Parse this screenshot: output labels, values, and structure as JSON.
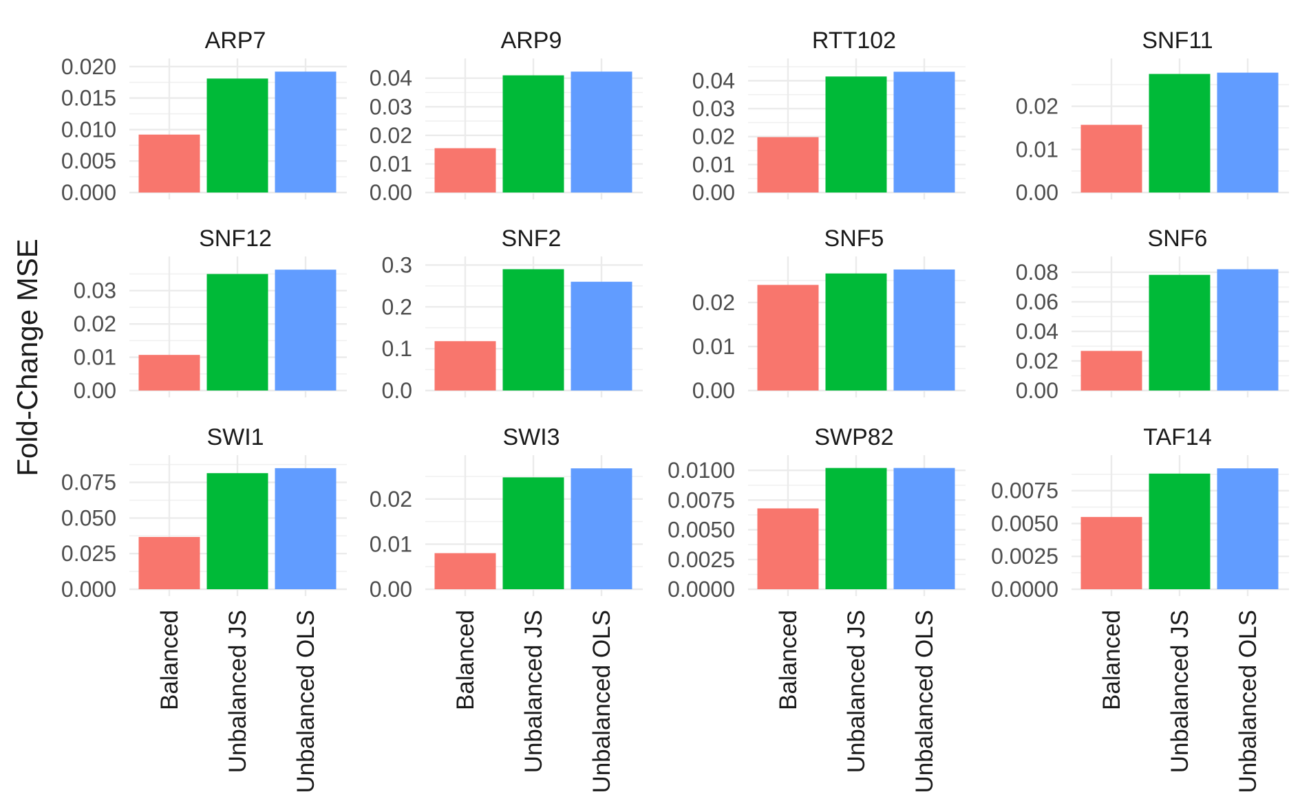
{
  "chart_data": {
    "type": "bar",
    "layout": "facet grid, 3 rows x 4 columns, free y scales",
    "ylabel": "Fold-Change MSE",
    "xlabel": "",
    "categories": [
      "Balanced",
      "Unbalanced JS",
      "Unbalanced OLS"
    ],
    "colors": {
      "Balanced": "#F8766D",
      "Unbalanced JS": "#00BA38",
      "Unbalanced OLS": "#619CFF"
    },
    "grid": true,
    "legend": "none",
    "panels": [
      {
        "title": "ARP7",
        "values": [
          0.0092,
          0.0181,
          0.0192
        ],
        "ylim": [
          0,
          0.0202
        ],
        "ticks": [
          0.0,
          0.005,
          0.01,
          0.015,
          0.02
        ],
        "tick_labels": [
          "0.000",
          "0.005",
          "0.010",
          "0.015",
          "0.020"
        ]
      },
      {
        "title": "ARP9",
        "values": [
          0.0155,
          0.041,
          0.0423
        ],
        "ylim": [
          0,
          0.0445
        ],
        "ticks": [
          0.0,
          0.01,
          0.02,
          0.03,
          0.04
        ],
        "tick_labels": [
          "0.00",
          "0.01",
          "0.02",
          "0.03",
          "0.04"
        ]
      },
      {
        "title": "RTT102",
        "values": [
          0.0198,
          0.0415,
          0.0432
        ],
        "ylim": [
          0,
          0.0455
        ],
        "ticks": [
          0.0,
          0.01,
          0.02,
          0.03,
          0.04
        ],
        "tick_labels": [
          "0.00",
          "0.01",
          "0.02",
          "0.03",
          "0.04"
        ]
      },
      {
        "title": "SNF11",
        "values": [
          0.0157,
          0.0275,
          0.0278
        ],
        "ylim": [
          0,
          0.0295
        ],
        "ticks": [
          0.0,
          0.01,
          0.02
        ],
        "tick_labels": [
          "0.00",
          "0.01",
          "0.02"
        ]
      },
      {
        "title": "SNF12",
        "values": [
          0.0107,
          0.035,
          0.0363
        ],
        "ylim": [
          0,
          0.0382
        ],
        "ticks": [
          0.0,
          0.01,
          0.02,
          0.03
        ],
        "tick_labels": [
          "0.00",
          "0.01",
          "0.02",
          "0.03"
        ]
      },
      {
        "title": "SNF2",
        "values": [
          0.118,
          0.29,
          0.26
        ],
        "ylim": [
          0,
          0.304
        ],
        "ticks": [
          0.0,
          0.1,
          0.2,
          0.3
        ],
        "tick_labels": [
          "0.0",
          "0.1",
          "0.2",
          "0.3"
        ]
      },
      {
        "title": "SNF5",
        "values": [
          0.024,
          0.0266,
          0.0275
        ],
        "ylim": [
          0,
          0.0289
        ],
        "ticks": [
          0.0,
          0.01,
          0.02
        ],
        "tick_labels": [
          "0.00",
          "0.01",
          "0.02"
        ]
      },
      {
        "title": "SNF6",
        "values": [
          0.0268,
          0.0782,
          0.082
        ],
        "ylim": [
          0,
          0.086
        ],
        "ticks": [
          0.0,
          0.02,
          0.04,
          0.06,
          0.08
        ],
        "tick_labels": [
          "0.00",
          "0.02",
          "0.04",
          "0.06",
          "0.08"
        ]
      },
      {
        "title": "SWI1",
        "values": [
          0.0367,
          0.0815,
          0.085
        ],
        "ylim": [
          0,
          0.0893
        ],
        "ticks": [
          0.0,
          0.025,
          0.05,
          0.075
        ],
        "tick_labels": [
          "0.000",
          "0.025",
          "0.050",
          "0.075"
        ]
      },
      {
        "title": "SWI3",
        "values": [
          0.008,
          0.0248,
          0.0268
        ],
        "ylim": [
          0,
          0.0282
        ],
        "ticks": [
          0.0,
          0.01,
          0.02
        ],
        "tick_labels": [
          "0.00",
          "0.01",
          "0.02"
        ]
      },
      {
        "title": "SWP82",
        "values": [
          0.0068,
          0.0102,
          0.0102
        ],
        "ylim": [
          0,
          0.0107
        ],
        "ticks": [
          0.0,
          0.0025,
          0.005,
          0.0075,
          0.01
        ],
        "tick_labels": [
          "0.0000",
          "0.0025",
          "0.0050",
          "0.0075",
          "0.0100"
        ]
      },
      {
        "title": "TAF14",
        "values": [
          0.0055,
          0.0088,
          0.0092
        ],
        "ylim": [
          0,
          0.00968
        ],
        "ticks": [
          0.0,
          0.0025,
          0.005,
          0.0075
        ],
        "tick_labels": [
          "0.0000",
          "0.0025",
          "0.0050",
          "0.0075"
        ]
      }
    ]
  }
}
